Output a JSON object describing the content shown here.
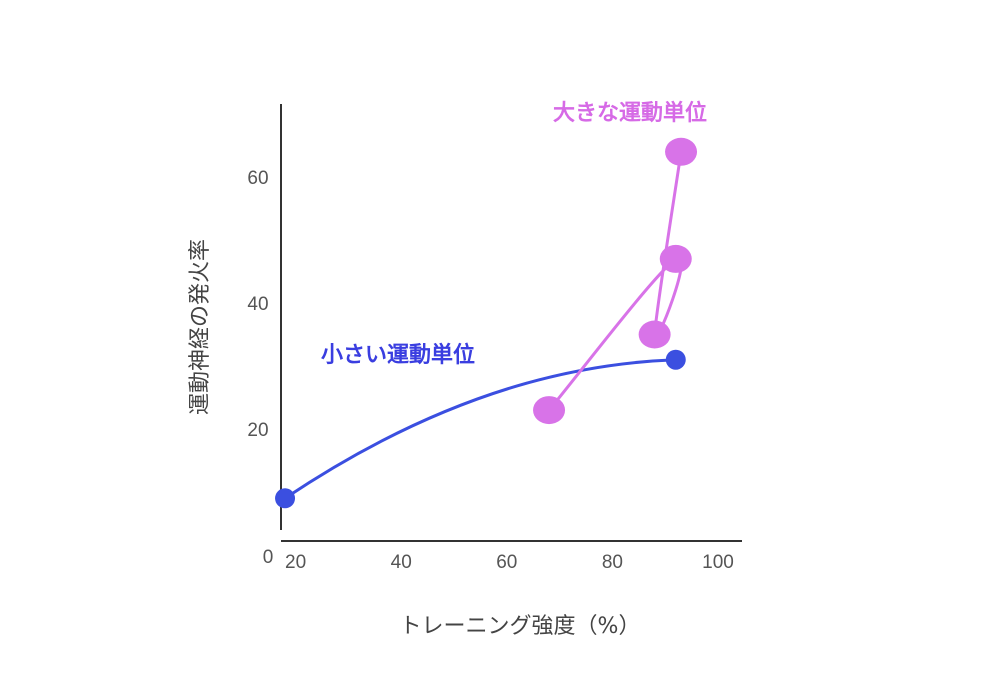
{
  "chart_data": {
    "type": "line",
    "xlabel": "トレーニング強度（%）",
    "ylabel": "運動神経の発火率",
    "origin_label": "0",
    "xlim": [
      0,
      100
    ],
    "ylim": [
      0,
      70
    ],
    "x_ticks": [
      20,
      40,
      60,
      80,
      100
    ],
    "y_ticks": [
      20,
      40,
      60
    ],
    "grid": false,
    "series": [
      {
        "name": "小さい運動単位",
        "color": "#3b4fe0",
        "label_color": "#3a3ee0",
        "points": [
          {
            "x": 18,
            "y": 9
          },
          {
            "x": 92,
            "y": 31
          }
        ]
      },
      {
        "name": "大きな運動単位",
        "color": "#d873e8",
        "label_color": "#d66ae6",
        "points": [
          {
            "x": 68,
            "y": 23
          },
          {
            "x": 92,
            "y": 47
          },
          {
            "x": 88,
            "y": 35
          },
          {
            "x": 93,
            "y": 64
          }
        ]
      }
    ]
  }
}
